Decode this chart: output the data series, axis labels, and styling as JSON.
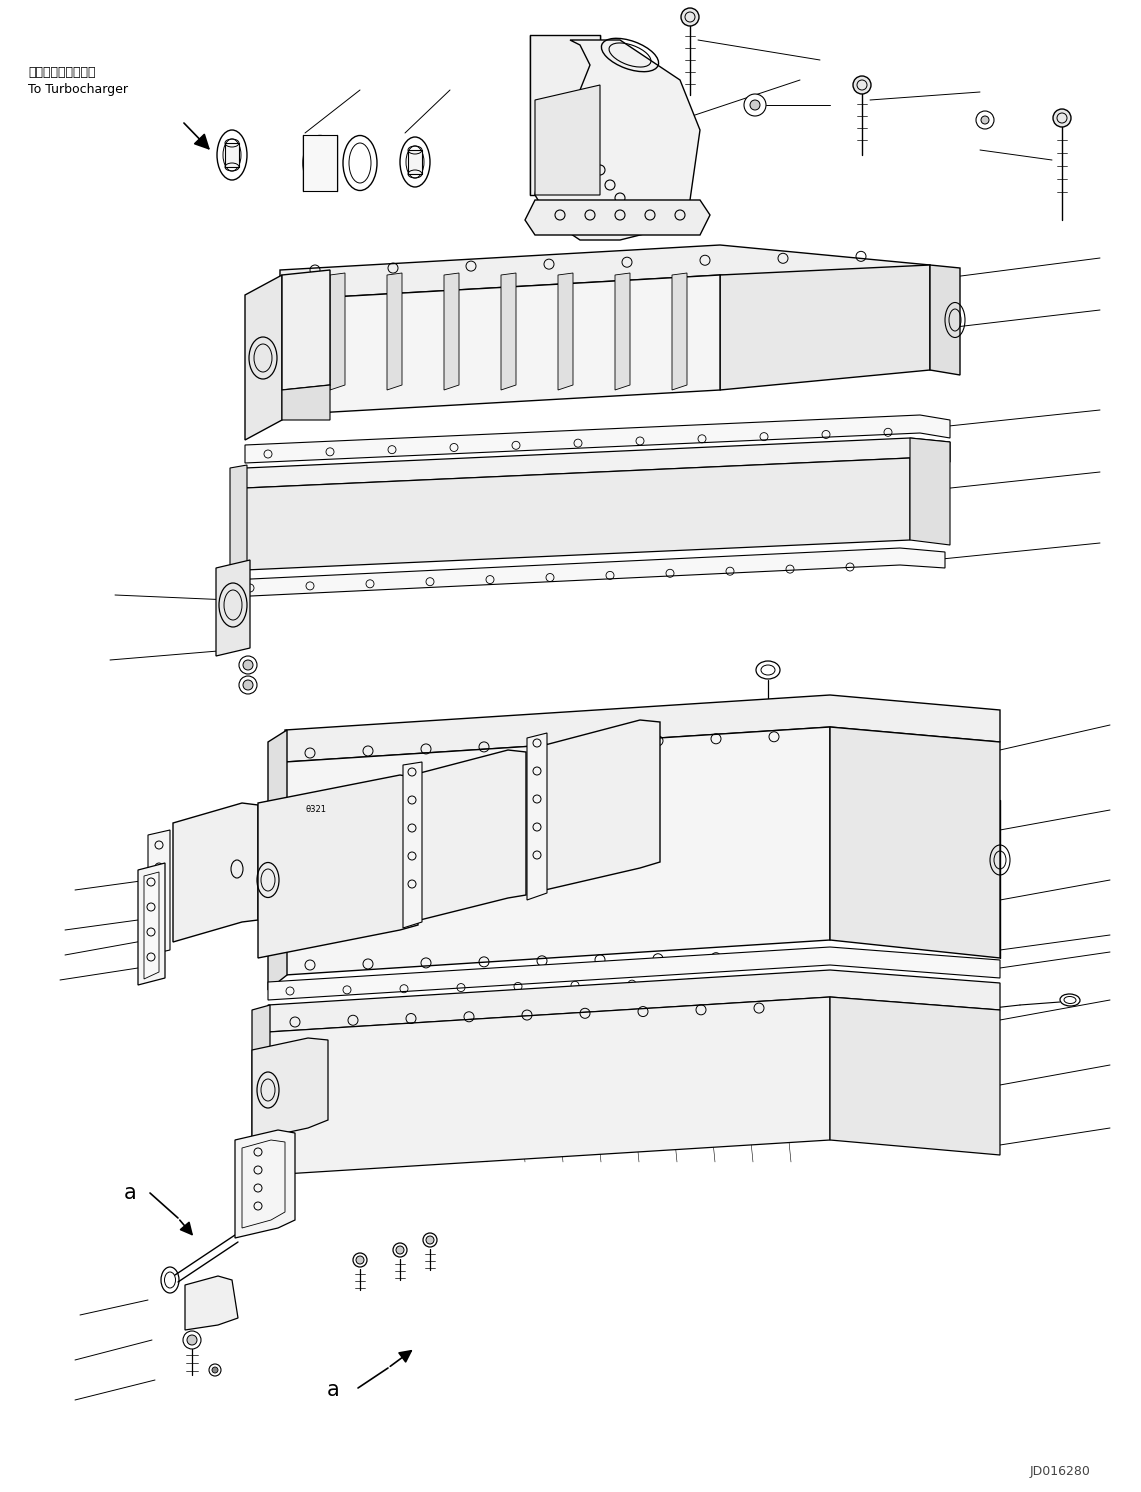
{
  "bg_color": "#ffffff",
  "line_color": "#000000",
  "fig_width": 11.41,
  "fig_height": 14.92,
  "dpi": 100,
  "text1": "ターボチャージャへ",
  "text2": "To Turbocharger",
  "label_a": "a",
  "watermark": "JD016280"
}
